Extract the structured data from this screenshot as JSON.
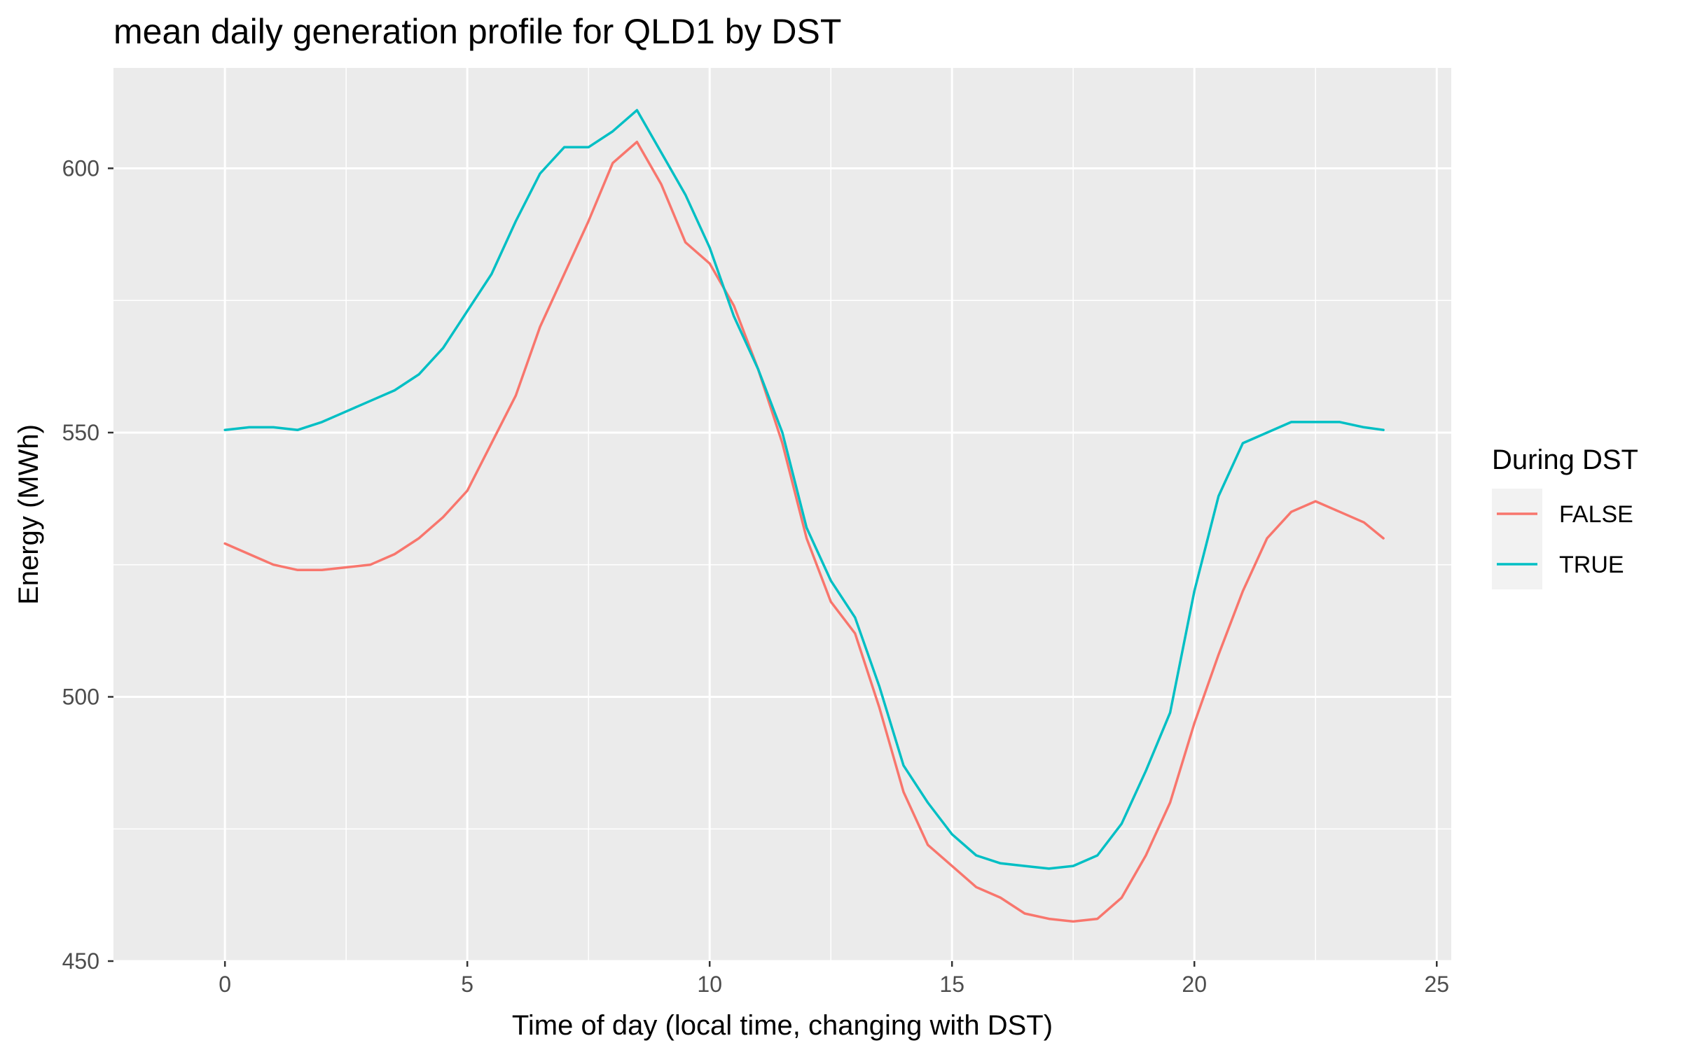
{
  "chart_data": {
    "type": "line",
    "title": "mean daily generation profile for QLD1 by DST",
    "xlabel": "Time of day (local time, changing with DST)",
    "ylabel": "Energy (MWh)",
    "xlim": [
      -2.3,
      25.3
    ],
    "ylim": [
      450,
      619
    ],
    "x_ticks": [
      0,
      5,
      10,
      15,
      20,
      25
    ],
    "y_ticks": [
      450,
      500,
      550,
      600
    ],
    "grid": true,
    "legend_position": "right",
    "legend_title": "During DST",
    "x": [
      0,
      0.5,
      1,
      1.5,
      2,
      2.5,
      3,
      3.5,
      4,
      4.5,
      5,
      5.5,
      6,
      6.5,
      7,
      7.5,
      8,
      8.5,
      9,
      9.5,
      10,
      10.5,
      11,
      11.5,
      12,
      12.5,
      13,
      13.5,
      14,
      14.5,
      15,
      15.5,
      16,
      16.5,
      17,
      17.5,
      18,
      18.5,
      19,
      19.5,
      20,
      20.5,
      21,
      21.5,
      22,
      22.5,
      23,
      23.5,
      23.9
    ],
    "series": [
      {
        "name": "FALSE",
        "color": "#F8766D",
        "values": [
          529,
          527,
          525,
          524,
          524,
          524.5,
          525,
          527,
          530,
          534,
          539,
          548,
          557,
          570,
          580,
          590,
          601,
          605,
          597,
          586,
          582,
          574,
          562,
          548,
          530,
          518,
          512,
          498,
          482,
          472,
          468,
          464,
          462,
          459,
          458,
          457.5,
          458,
          462,
          470,
          480,
          495,
          508,
          520,
          530,
          535,
          537,
          535,
          533,
          530
        ]
      },
      {
        "name": "TRUE",
        "color": "#00BFC4",
        "values": [
          550.5,
          551,
          551,
          550.5,
          552,
          554,
          556,
          558,
          561,
          566,
          573,
          580,
          590,
          599,
          604,
          604,
          607,
          611,
          603,
          595,
          585,
          572,
          562,
          550,
          532,
          522,
          515,
          502,
          487,
          480,
          474,
          470,
          468.5,
          468,
          467.5,
          468,
          470,
          476,
          486,
          497,
          520,
          538,
          548,
          550,
          552,
          552,
          552,
          551,
          550.5
        ]
      }
    ]
  }
}
